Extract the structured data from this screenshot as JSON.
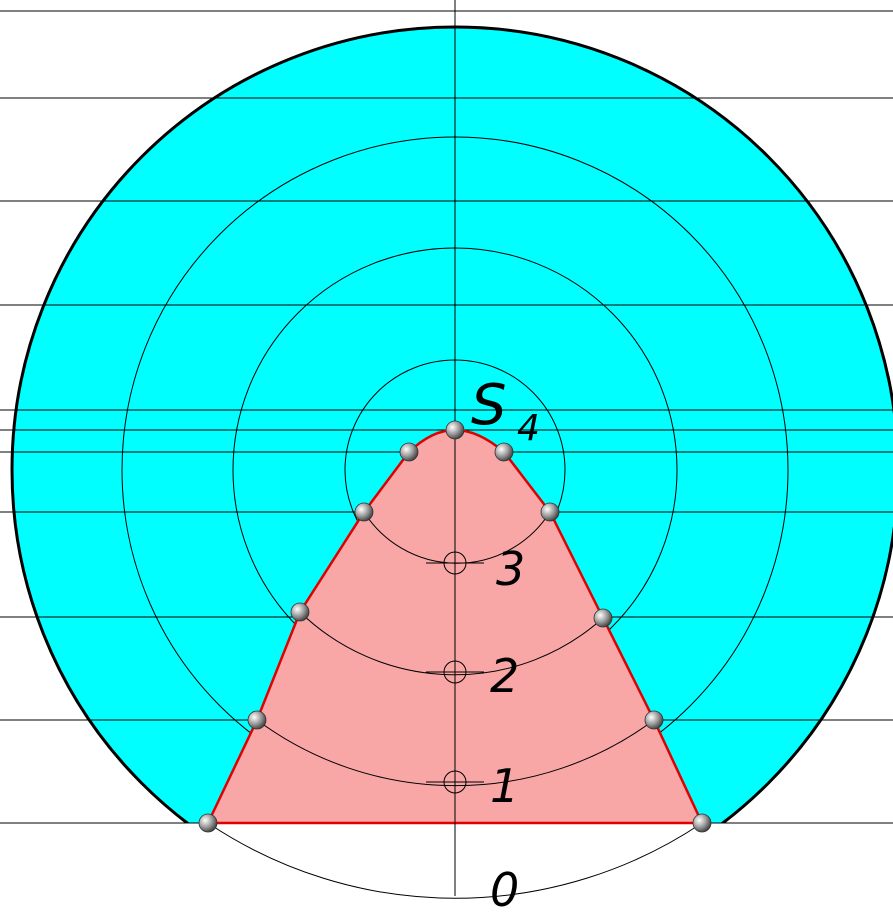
{
  "labels": {
    "apex": "S",
    "apex_subscript": "4",
    "level_0": "0",
    "level_1": "1",
    "level_2": "2",
    "level_3": "3"
  },
  "colors": {
    "disc_fill": "#00ffff",
    "section_fill": "#f8a6a6",
    "section_edge": "#e00000",
    "line": "#000000",
    "point": "#9a9a9a"
  }
}
